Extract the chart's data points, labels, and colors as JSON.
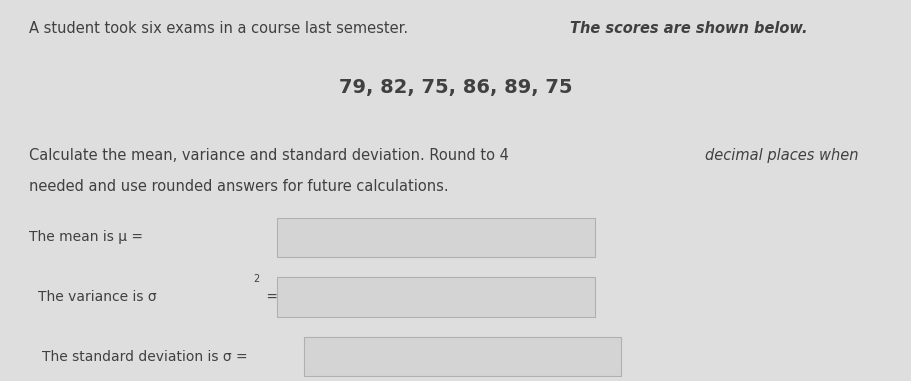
{
  "bg_color": "#dedede",
  "text_color": "#404040",
  "font_size_body": 10.5,
  "font_size_scores": 14,
  "font_size_labels": 10.0,
  "box_facecolor": "#d4d4d4",
  "box_edgecolor": "#b0b0b0",
  "line1_normal": "A student took six exams in a course last semester. ",
  "line1_italic": "The scores are shown below.",
  "scores_line": "79, 82, 75, 86, 89, 75",
  "line3a_normal": "Calculate the",
  "line3a_italic": "ʼmean, variance and standard deviation. Round to 4 ",
  "line3a_italic2": "decimal places when",
  "line3b_normal": "needed and use rounded answers for future calculations.",
  "label_mean": "The mean is μ =",
  "label_variance_pre": "The variance is σ",
  "label_variance_post": " =",
  "label_std": "The standard deviation is σ ="
}
